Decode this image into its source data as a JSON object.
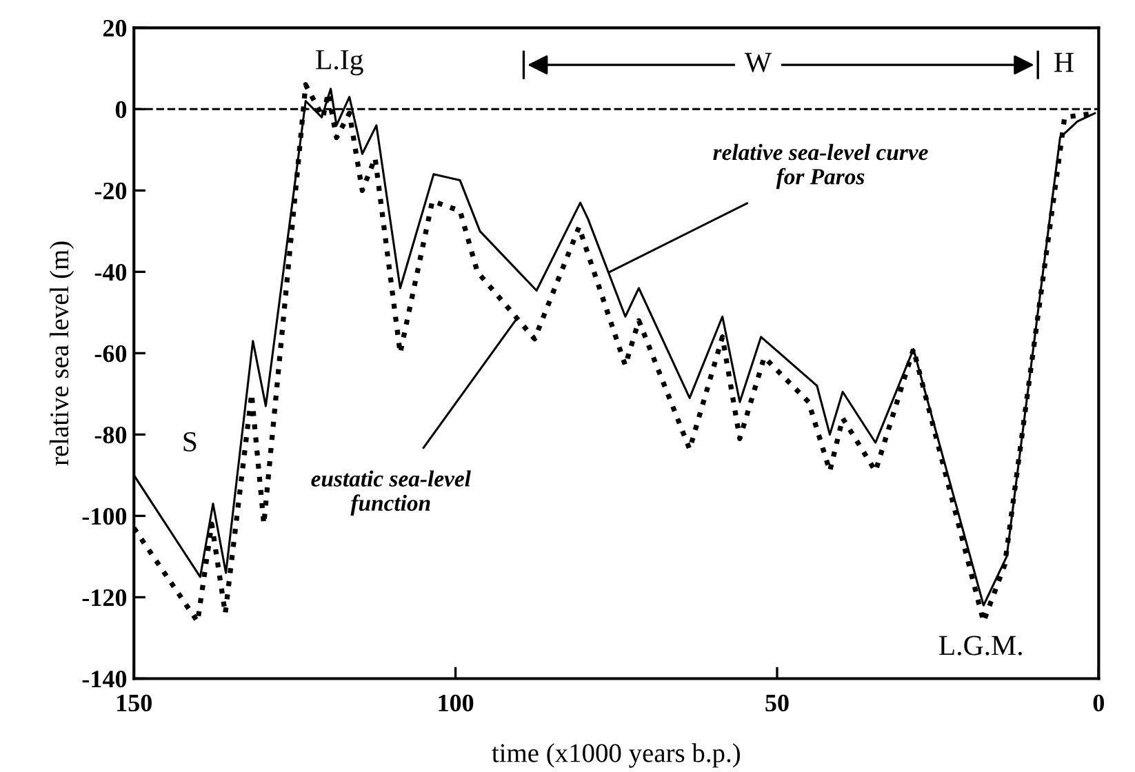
{
  "chart_data": {
    "type": "line",
    "xlabel": "time (x1000 years b.p.)",
    "ylabel": "relative sea level (m)",
    "xlim": [
      150,
      0
    ],
    "ylim": [
      -140,
      20
    ],
    "xticks": [
      150,
      100,
      50,
      0
    ],
    "yticks": [
      -140,
      -120,
      -100,
      -80,
      -60,
      -40,
      -20,
      0,
      20
    ],
    "grid": false,
    "legend": false,
    "marker": "none",
    "series": [
      {
        "color": "#000000",
        "line_style": "solid",
        "x": [
          150,
          139.7,
          137.7,
          135.7,
          131.5,
          129.5,
          123.3,
          120.8,
          119.4,
          118.5,
          116.5,
          114.5,
          112.3,
          108.6,
          103.4,
          99.3,
          96.2,
          87.4,
          80.6,
          79.4,
          73.6,
          71.5,
          63.6,
          58.5,
          55.8,
          52.5,
          43.8,
          41.8,
          39.8,
          34.7,
          28.8,
          17.9,
          14.3,
          10.9,
          6,
          3.3,
          0.6
        ],
        "values": [
          -90,
          -115,
          -97,
          -114,
          -57,
          -73,
          2,
          -2,
          5,
          -4,
          3,
          -11,
          -4,
          -44,
          -16,
          -17.5,
          -30,
          -44.6,
          -23,
          -27,
          -51,
          -44,
          -71,
          -51,
          -72,
          -56,
          -68,
          -80,
          -69.5,
          -82,
          -59,
          -122,
          -110,
          -68,
          -7,
          -3,
          -1
        ]
      },
      {
        "color": "#000000",
        "line_style": "dotted",
        "x": [
          150,
          140.1,
          137.9,
          135.8,
          131.7,
          129.8,
          123.3,
          120.6,
          119.8,
          118.5,
          116.5,
          114.5,
          112.5,
          108.6,
          103.6,
          99.3,
          96.6,
          87.7,
          80.8,
          73.6,
          71.5,
          63.6,
          58.5,
          55.8,
          52,
          45.1,
          41.8,
          39.8,
          34.7,
          28.8,
          17.9,
          14.6,
          10.9,
          5.3,
          0.6
        ],
        "values": [
          -103,
          -126,
          -102,
          -124,
          -70,
          -102,
          6,
          -2,
          4,
          -7,
          -1,
          -20,
          -12,
          -60,
          -22.6,
          -25,
          -40,
          -56.5,
          -29,
          -63,
          -52,
          -83.6,
          -56,
          -81,
          -61,
          -72,
          -89,
          -76,
          -89,
          -59,
          -126,
          -112,
          -68,
          -2,
          -1
        ]
      }
    ],
    "ref_lines": [
      {
        "axis": "y",
        "value": 0,
        "line_style": "dashed",
        "color": "#000000"
      }
    ],
    "annotations": [
      "L.Ig",
      "S",
      "W",
      "H",
      "L.G.M.",
      {
        "text": "relative sea-level curve\nfor Paros",
        "x": 76,
        "y": -40
      },
      {
        "text": "eustatic sea-level\nfunction",
        "x": 90.7,
        "y": -52
      }
    ]
  }
}
